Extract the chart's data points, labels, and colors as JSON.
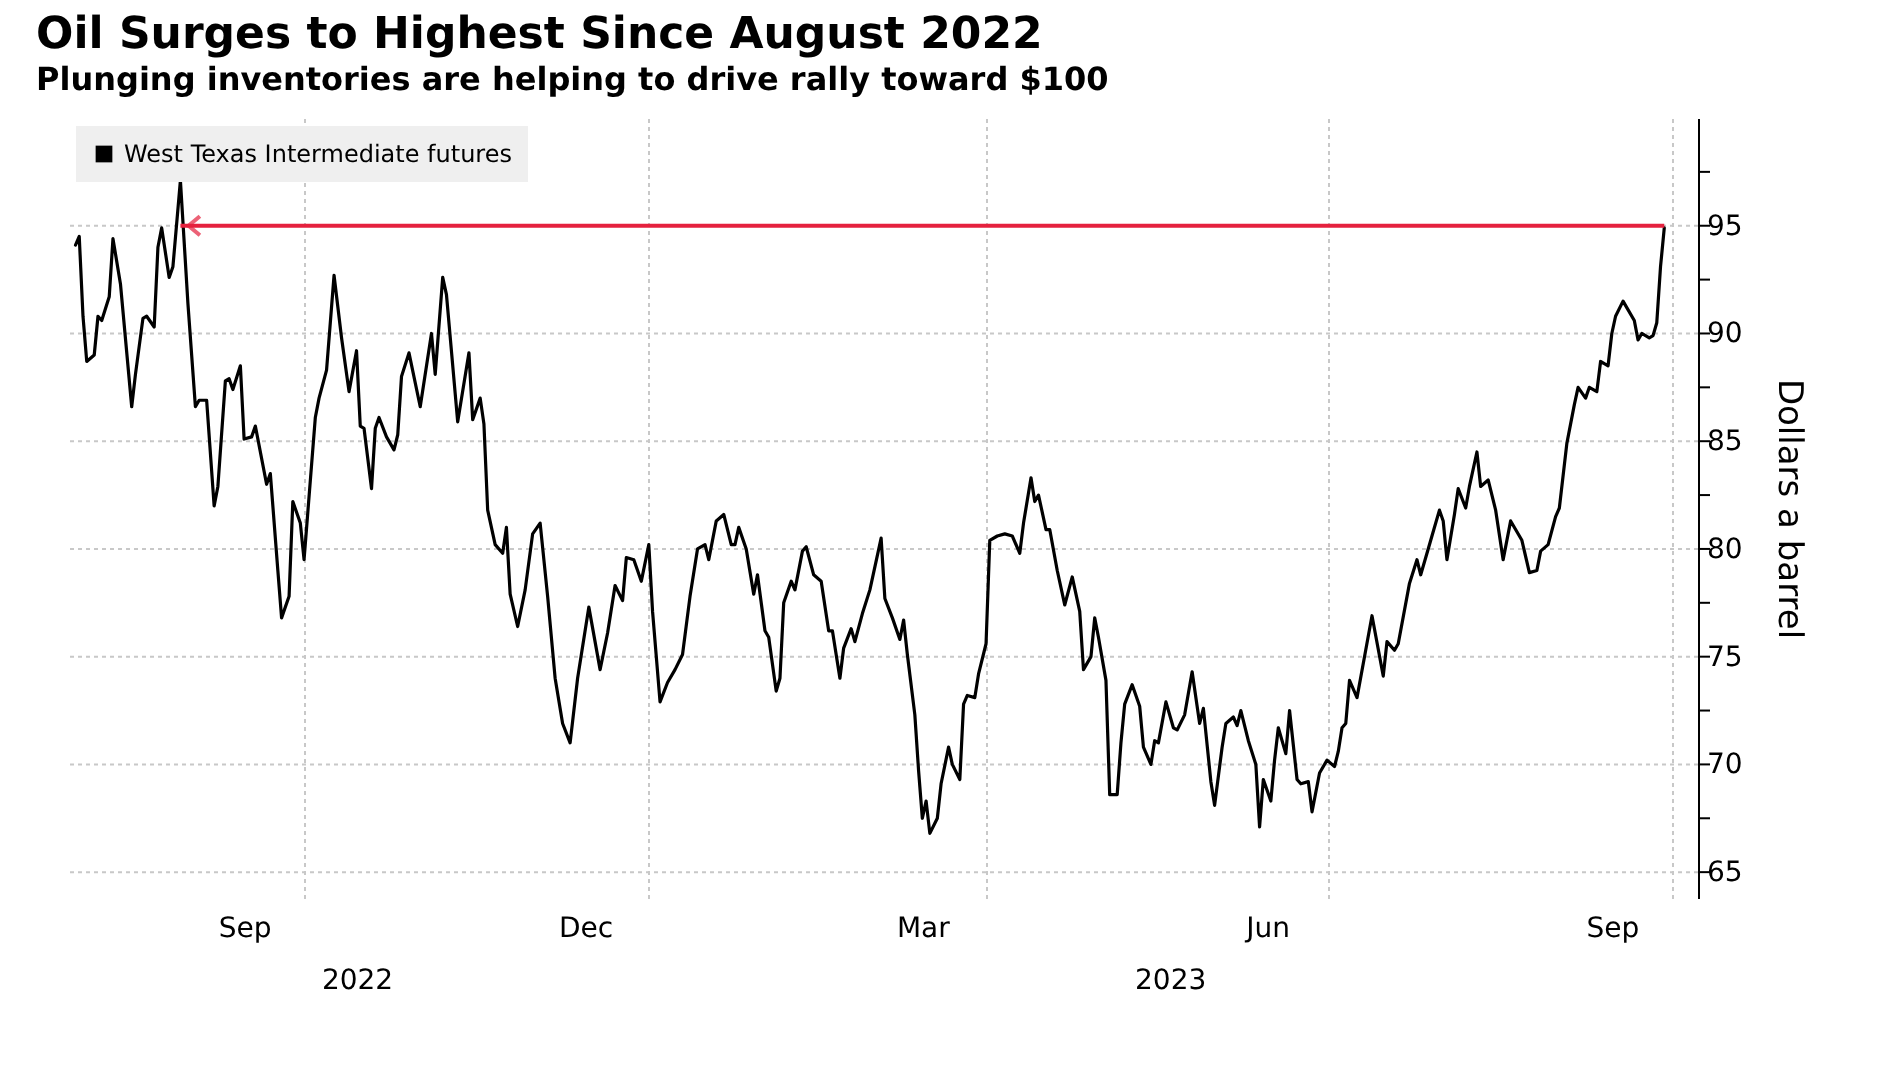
{
  "chart_data": {
    "type": "line",
    "title": "Oil Surges to Highest Since August 2022",
    "subtitle": "Plunging inventories are helping to drive rally toward $100",
    "ylabel": "Dollars a barrel",
    "x2lim": [
      "2022-07-30",
      "2023-10-08"
    ],
    "x2ticks": [
      {
        "value": "2022-10-15",
        "label": "2022"
      },
      {
        "value": "2023-05-20",
        "label": "2023"
      }
    ],
    "ref_lines": [
      {
        "axis": "y",
        "value": 95,
        "color": "#e5213e"
      }
    ],
    "xlim": [
      "2022-07-30",
      "2023-10-08"
    ],
    "xticks": [
      {
        "value": "2022-09-15",
        "label": "Sep"
      },
      {
        "value": "2022-10-01",
        "label": null
      },
      {
        "value": "2022-12-15",
        "label": "Dec"
      },
      {
        "value": "2023-01-01",
        "label": null
      },
      {
        "value": "2023-03-15",
        "label": "Mar"
      },
      {
        "value": "2023-04-01",
        "label": null
      },
      {
        "value": "2023-06-15",
        "label": "Jun"
      },
      {
        "value": "2023-07-01",
        "label": null
      },
      {
        "value": "2023-09-15",
        "label": "Sep"
      },
      {
        "value": "2023-10-01",
        "label": null
      }
    ],
    "ylim": [
      63.8,
      100
    ],
    "yticks": [
      65,
      {
        "value": 67.5,
        "label": null
      },
      70,
      {
        "value": 72.5,
        "label": null
      },
      75,
      {
        "value": 77.5,
        "label": null
      },
      80,
      {
        "value": 82.5,
        "label": null
      },
      85,
      {
        "value": 87.5,
        "label": null
      },
      90,
      {
        "value": 92.5,
        "label": null
      },
      95,
      {
        "value": 97.5,
        "label": null
      }
    ],
    "grid": true,
    "legend": "top left",
    "x": [
      "2022-08-01",
      "2022-08-02",
      "2022-08-03",
      "2022-08-04",
      "2022-08-06",
      "2022-08-07",
      "2022-08-08",
      "2022-08-10",
      "2022-08-11",
      "2022-08-13",
      "2022-08-16",
      "2022-08-17",
      "2022-08-19",
      "2022-08-20",
      "2022-08-22",
      "2022-08-23",
      "2022-08-24",
      "2022-08-26",
      "2022-08-27",
      "2022-08-29",
      "2022-08-31",
      "2022-09-02",
      "2022-09-03",
      "2022-09-05",
      "2022-09-07",
      "2022-09-08",
      "2022-09-10",
      "2022-09-11",
      "2022-09-12",
      "2022-09-14",
      "2022-09-15",
      "2022-09-17",
      "2022-09-18",
      "2022-09-21",
      "2022-09-22",
      "2022-09-24",
      "2022-09-25",
      "2022-09-27",
      "2022-09-28",
      "2022-09-30",
      "2022-10-01",
      "2022-10-04",
      "2022-10-05",
      "2022-10-07",
      "2022-10-09",
      "2022-10-11",
      "2022-10-13",
      "2022-10-15",
      "2022-10-16",
      "2022-10-17",
      "2022-10-19",
      "2022-10-20",
      "2022-10-21",
      "2022-10-23",
      "2022-10-25",
      "2022-10-26",
      "2022-10-27",
      "2022-10-29",
      "2022-11-01",
      "2022-11-04",
      "2022-11-05",
      "2022-11-07",
      "2022-11-08",
      "2022-11-11",
      "2022-11-14",
      "2022-11-15",
      "2022-11-17",
      "2022-11-18",
      "2022-11-19",
      "2022-11-21",
      "2022-11-23",
      "2022-11-24",
      "2022-11-25",
      "2022-11-27",
      "2022-11-29",
      "2022-12-01",
      "2022-12-03",
      "2022-12-05",
      "2022-12-07",
      "2022-12-09",
      "2022-12-11",
      "2022-12-13",
      "2022-12-16",
      "2022-12-19",
      "2022-12-21",
      "2022-12-23",
      "2022-12-25",
      "2022-12-26",
      "2022-12-28",
      "2022-12-30",
      "2023-01-01",
      "2023-01-02",
      "2023-01-04",
      "2023-01-06",
      "2023-01-08",
      "2023-01-10",
      "2023-01-12",
      "2023-01-14",
      "2023-01-16",
      "2023-01-17",
      "2023-01-19",
      "2023-01-21",
      "2023-01-23",
      "2023-01-24",
      "2023-01-25",
      "2023-01-27",
      "2023-01-29",
      "2023-01-30",
      "2023-02-01",
      "2023-02-02",
      "2023-02-04",
      "2023-02-05",
      "2023-02-06",
      "2023-02-08",
      "2023-02-09",
      "2023-02-11",
      "2023-02-12",
      "2023-02-14",
      "2023-02-16",
      "2023-02-18",
      "2023-02-19",
      "2023-02-21",
      "2023-02-22",
      "2023-02-24",
      "2023-02-25",
      "2023-02-27",
      "2023-03-01",
      "2023-03-04",
      "2023-03-05",
      "2023-03-07",
      "2023-03-09",
      "2023-03-10",
      "2023-03-11",
      "2023-03-13",
      "2023-03-14",
      "2023-03-15",
      "2023-03-16",
      "2023-03-17",
      "2023-03-19",
      "2023-03-20",
      "2023-03-22",
      "2023-03-23",
      "2023-03-25",
      "2023-03-26",
      "2023-03-27",
      "2023-03-29",
      "2023-03-30",
      "2023-04-01",
      "2023-04-02",
      "2023-04-04",
      "2023-04-06",
      "2023-04-08",
      "2023-04-10",
      "2023-04-11",
      "2023-04-13",
      "2023-04-14",
      "2023-04-15",
      "2023-04-17",
      "2023-04-18",
      "2023-04-20",
      "2023-04-22",
      "2023-04-24",
      "2023-04-26",
      "2023-04-27",
      "2023-04-29",
      "2023-04-30",
      "2023-05-01",
      "2023-05-03",
      "2023-05-04",
      "2023-05-06",
      "2023-05-07",
      "2023-05-08",
      "2023-05-10",
      "2023-05-12",
      "2023-05-13",
      "2023-05-15",
      "2023-05-16",
      "2023-05-17",
      "2023-05-19",
      "2023-05-21",
      "2023-05-22",
      "2023-05-24",
      "2023-05-26",
      "2023-05-28",
      "2023-05-29",
      "2023-05-31",
      "2023-06-01",
      "2023-06-03",
      "2023-06-04",
      "2023-06-06",
      "2023-06-07",
      "2023-06-08",
      "2023-06-10",
      "2023-06-12",
      "2023-06-13",
      "2023-06-14",
      "2023-06-16",
      "2023-06-17",
      "2023-06-18",
      "2023-06-20",
      "2023-06-21",
      "2023-06-23",
      "2023-06-24",
      "2023-06-26",
      "2023-06-27",
      "2023-06-29",
      "2023-07-01",
      "2023-07-03",
      "2023-07-04",
      "2023-07-05",
      "2023-07-06",
      "2023-07-07",
      "2023-07-09",
      "2023-07-11",
      "2023-07-13",
      "2023-07-16",
      "2023-07-17",
      "2023-07-19",
      "2023-07-20",
      "2023-07-23",
      "2023-07-25",
      "2023-07-26",
      "2023-07-28",
      "2023-07-29",
      "2023-07-31",
      "2023-08-01",
      "2023-08-02",
      "2023-08-04",
      "2023-08-05",
      "2023-08-07",
      "2023-08-08",
      "2023-08-10",
      "2023-08-11",
      "2023-08-13",
      "2023-08-15",
      "2023-08-17",
      "2023-08-19",
      "2023-08-22",
      "2023-08-24",
      "2023-08-26",
      "2023-08-27",
      "2023-08-29",
      "2023-08-31",
      "2023-09-01",
      "2023-09-03",
      "2023-09-05",
      "2023-09-06",
      "2023-09-08",
      "2023-09-09",
      "2023-09-11",
      "2023-09-12",
      "2023-09-14",
      "2023-09-15",
      "2023-09-16",
      "2023-09-18",
      "2023-09-19",
      "2023-09-21",
      "2023-09-22",
      "2023-09-23",
      "2023-09-25",
      "2023-09-26",
      "2023-09-27",
      "2023-09-28",
      "2023-09-29"
    ],
    "series": [
      {
        "name": "West Texas Intermediate futures",
        "color": "#000000",
        "values": [
          94.1,
          94.5,
          90.8,
          88.7,
          89.0,
          90.8,
          90.6,
          91.7,
          94.4,
          92.3,
          86.6,
          88.1,
          90.7,
          90.8,
          90.3,
          94.0,
          94.9,
          92.6,
          93.1,
          97.1,
          91.4,
          86.6,
          86.9,
          86.9,
          82.0,
          82.9,
          87.8,
          87.9,
          87.4,
          88.5,
          85.1,
          85.2,
          85.7,
          83.0,
          83.5,
          79.0,
          76.8,
          77.8,
          82.2,
          81.2,
          79.5,
          86.1,
          87.0,
          88.3,
          92.7,
          89.8,
          87.3,
          89.2,
          85.7,
          85.6,
          82.8,
          85.6,
          86.1,
          85.2,
          84.6,
          85.3,
          88.0,
          89.1,
          86.6,
          90.0,
          88.1,
          92.6,
          91.8,
          85.9,
          89.1,
          86.0,
          87.0,
          85.8,
          81.8,
          80.2,
          79.8,
          81.0,
          77.9,
          76.4,
          78.1,
          80.7,
          81.2,
          77.8,
          74.0,
          71.9,
          71.0,
          74.0,
          77.3,
          74.4,
          76.1,
          78.3,
          77.6,
          79.6,
          79.5,
          78.5,
          80.2,
          77.1,
          72.9,
          73.8,
          74.4,
          75.1,
          77.8,
          80.0,
          80.2,
          79.5,
          81.3,
          81.6,
          80.2,
          80.2,
          81.0,
          80.0,
          77.9,
          78.8,
          76.2,
          75.9,
          73.4,
          74.0,
          77.5,
          78.5,
          78.1,
          79.9,
          80.1,
          78.8,
          78.5,
          76.2,
          76.2,
          74.0,
          75.4,
          76.3,
          75.7,
          77.0,
          78.1,
          80.5,
          77.7,
          76.8,
          75.8,
          76.7,
          75.1,
          72.3,
          69.7,
          67.5,
          68.3,
          66.8,
          67.5,
          69.1,
          70.8,
          70.0,
          69.3,
          72.8,
          73.2,
          73.1,
          74.2,
          75.6,
          80.4,
          80.6,
          80.7,
          80.6,
          79.8,
          81.2,
          83.3,
          82.2,
          82.5,
          80.9,
          80.9,
          79.0,
          77.4,
          78.7,
          77.1,
          74.4,
          75.0,
          76.8,
          75.9,
          73.9,
          68.6,
          68.6,
          71.0,
          72.8,
          73.7,
          72.7,
          70.8,
          70.0,
          71.1,
          71.0,
          72.9,
          71.7,
          71.6,
          72.3,
          74.3,
          71.9,
          72.6,
          69.2,
          68.1,
          70.8,
          71.9,
          72.2,
          71.8,
          72.5,
          71.1,
          70.0,
          67.1,
          69.3,
          68.3,
          70.2,
          71.7,
          70.5,
          72.5,
          69.3,
          69.1,
          69.2,
          67.8,
          69.6,
          70.2,
          69.9,
          70.6,
          71.7,
          71.9,
          73.9,
          73.1,
          75.0,
          76.9,
          74.1,
          75.7,
          75.3,
          75.6,
          78.4,
          79.5,
          78.8,
          80.0,
          80.6,
          81.8,
          81.3,
          79.5,
          81.6,
          82.8,
          81.9,
          82.9,
          84.5,
          82.9,
          83.2,
          81.8,
          79.5,
          81.3,
          80.4,
          78.9,
          79.0,
          79.9,
          80.2,
          81.5,
          81.9,
          84.9,
          86.7,
          87.5,
          87.0,
          87.5,
          87.3,
          88.7,
          88.5,
          90.0,
          90.8,
          91.5,
          91.2,
          90.6,
          89.7,
          90.0,
          89.8,
          89.9,
          90.5,
          93.1,
          94.9
        ]
      }
    ]
  }
}
